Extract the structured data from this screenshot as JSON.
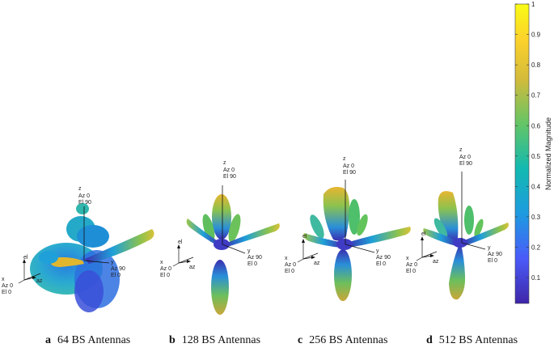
{
  "colorbar": {
    "title": "Normalized Magnitude",
    "ticks": [
      "1",
      "0.9",
      "0.8",
      "0.7",
      "0.6",
      "0.5",
      "0.4",
      "0.3",
      "0.2",
      "0.1"
    ],
    "colors": [
      "#3e26a8",
      "#4a5bf9",
      "#1e9be0",
      "#12b9b0",
      "#64c566",
      "#d3bb3b",
      "#fcd22c",
      "#f9fb15"
    ]
  },
  "panels": [
    {
      "letter": "a",
      "label": "64 BS Antennas",
      "axes": {
        "z": [
          "z",
          "Az 0",
          "El 90"
        ],
        "y": [
          "y",
          "Az 90",
          "El 0"
        ],
        "x": [
          "x",
          "Az 0",
          "El 0"
        ],
        "el": "el",
        "az": "az"
      }
    },
    {
      "letter": "b",
      "label": "128 BS Antennas",
      "axes": {
        "z": [
          "z",
          "Az 0",
          "El 90"
        ],
        "y": [
          "y",
          "Az 90",
          "El 0"
        ],
        "x": [
          "x",
          "Az 0",
          "El 0"
        ],
        "el": "el",
        "az": "az"
      }
    },
    {
      "letter": "c",
      "label": "256 BS Antennas",
      "axes": {
        "z": [
          "z",
          "Az 0",
          "El 90"
        ],
        "y": [
          "y",
          "Az 90",
          "El 0"
        ],
        "x": [
          "x",
          "Az 0",
          "El 0"
        ],
        "el": "el",
        "az": "az"
      }
    },
    {
      "letter": "d",
      "label": "512 BS Antennas",
      "axes": {
        "z": [
          "z",
          "Az 0",
          "El 90"
        ],
        "y": [
          "y",
          "Az 90",
          "El 0"
        ],
        "x": [
          "x",
          "Az 0",
          "El 0"
        ],
        "el": "el",
        "az": "az"
      }
    }
  ]
}
